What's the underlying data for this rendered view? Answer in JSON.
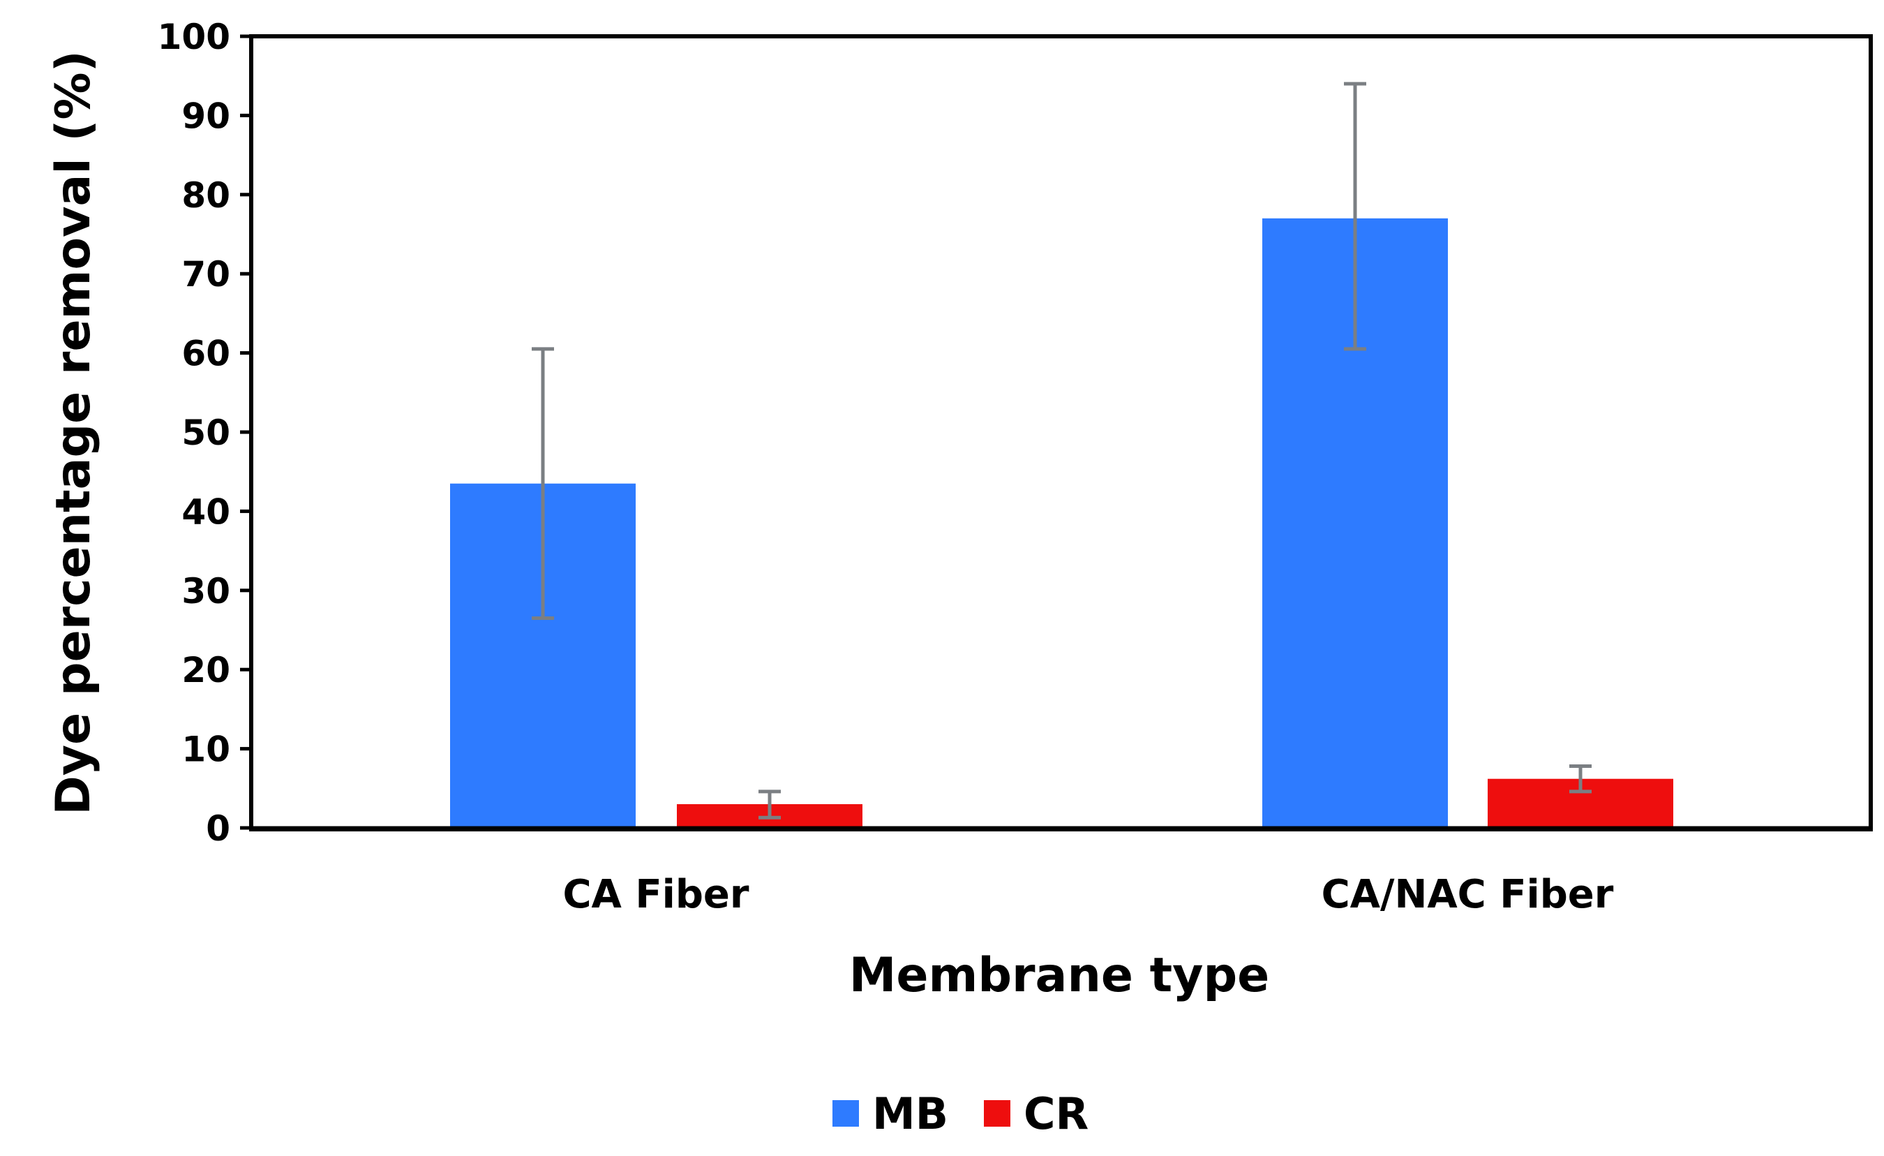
{
  "chart_data": {
    "type": "bar",
    "title": "",
    "xlabel": "Membrane type",
    "ylabel": "Dye percentage removal (%)",
    "ylim": [
      0,
      100
    ],
    "yticks": [
      "0",
      "10",
      "20",
      "30",
      "40",
      "50",
      "60",
      "70",
      "80",
      "90",
      "100"
    ],
    "categories": [
      "CA Fiber",
      "CA/NAC Fiber"
    ],
    "series": [
      {
        "name": "MB",
        "color": "#2e7bff",
        "values": [
          43.5,
          77
        ],
        "error_low": [
          26.5,
          60.5
        ],
        "error_high": [
          60.5,
          94
        ]
      },
      {
        "name": "CR",
        "color": "#ee0e0e",
        "values": [
          3,
          6.2
        ],
        "error_low": [
          1.3,
          4.6
        ],
        "error_high": [
          4.6,
          7.8
        ]
      }
    ],
    "error_bar_color": "#7b7f83",
    "legend": {
      "position": "bottom-center",
      "entries": [
        "MB",
        "CR"
      ]
    }
  }
}
